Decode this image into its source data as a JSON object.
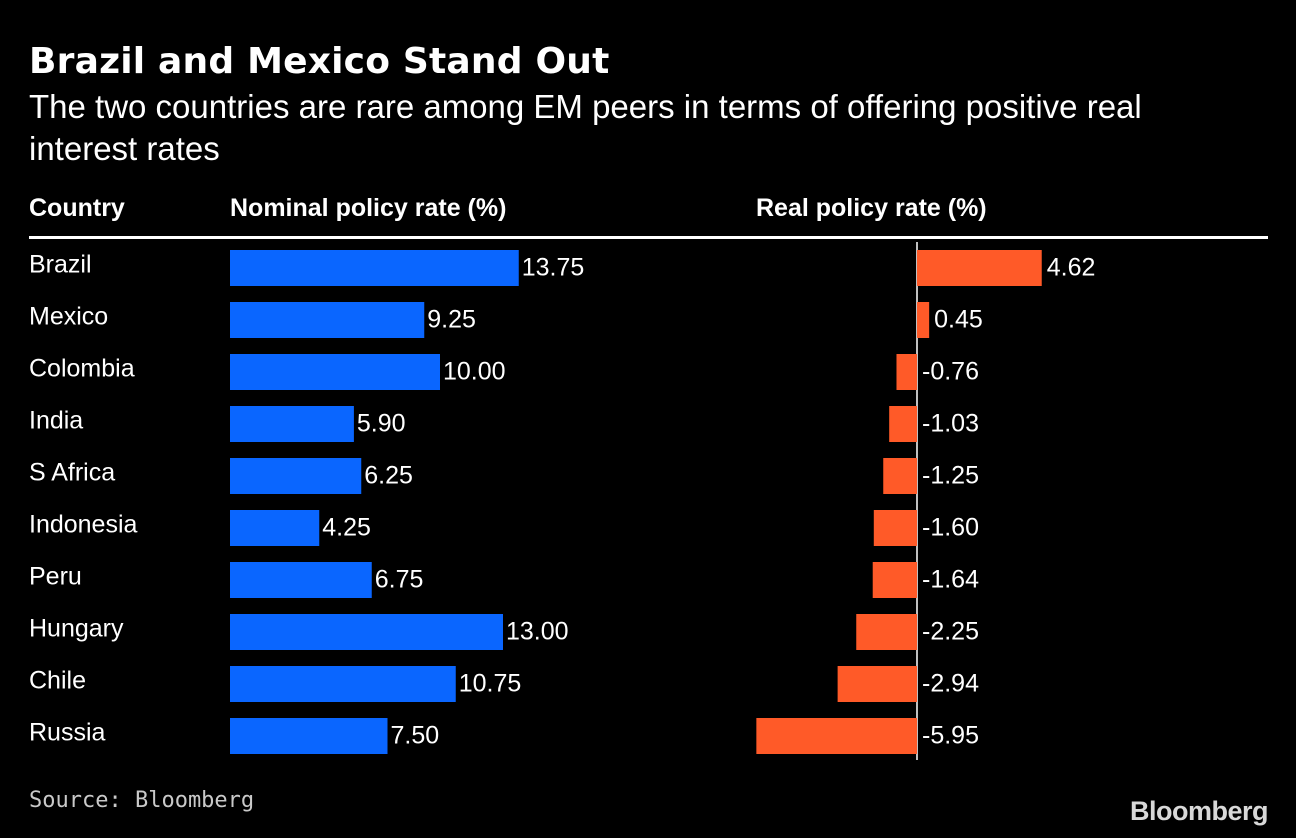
{
  "title": "Brazil and Mexico Stand Out",
  "subtitle": "The two countries are rare among EM peers in terms of offering positive real interest rates",
  "source": "Source: Bloomberg",
  "logo": "Bloomberg",
  "colors": {
    "nominal": "#0a66ff",
    "real": "#ff5a28",
    "background": "#000000"
  },
  "chart_data": {
    "type": "bar",
    "orientation": "horizontal",
    "columns": {
      "country": "Country",
      "nominal": "Nominal policy rate (%)",
      "real": "Real policy rate (%)"
    },
    "categories": [
      "Brazil",
      "Mexico",
      "Colombia",
      "India",
      "S Africa",
      "Indonesia",
      "Peru",
      "Hungary",
      "Chile",
      "Russia"
    ],
    "series": [
      {
        "name": "Nominal policy rate (%)",
        "values": [
          13.75,
          9.25,
          10.0,
          5.9,
          6.25,
          4.25,
          6.75,
          13.0,
          10.75,
          7.5
        ],
        "labels": [
          "13.75",
          "9.25",
          "10.00",
          "5.90",
          "6.25",
          "4.25",
          "6.75",
          "13.00",
          "10.75",
          "7.50"
        ]
      },
      {
        "name": "Real policy rate (%)",
        "values": [
          4.62,
          0.45,
          -0.76,
          -1.03,
          -1.25,
          -1.6,
          -1.64,
          -2.25,
          -2.94,
          -5.95
        ],
        "labels": [
          "4.62",
          "0.45",
          "-0.76",
          "-1.03",
          "-1.25",
          "-1.60",
          "-1.64",
          "-2.25",
          "-2.94",
          "-5.95"
        ]
      }
    ],
    "grid": false,
    "legend": "none"
  }
}
